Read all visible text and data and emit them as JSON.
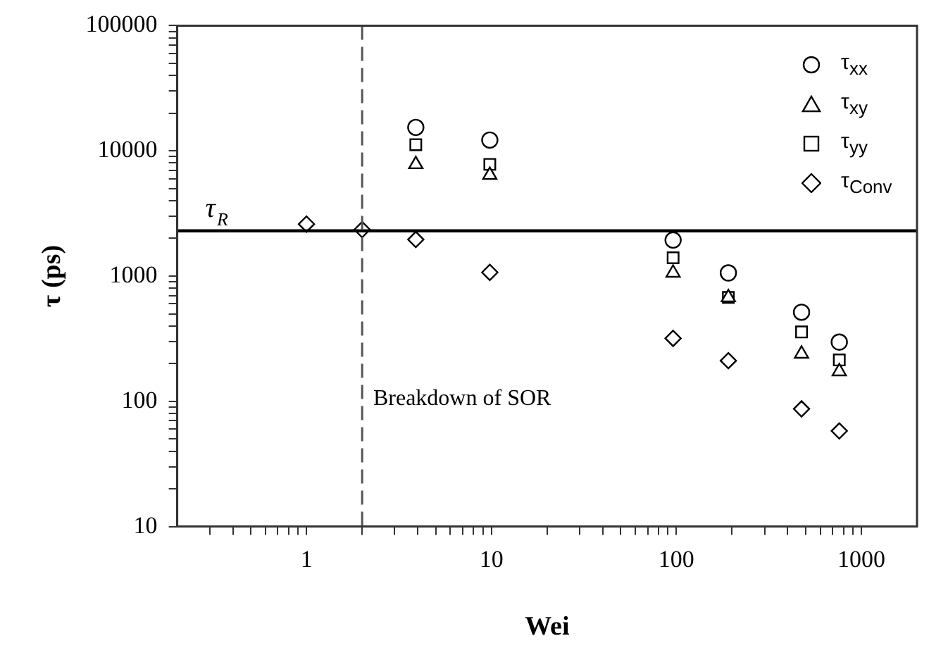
{
  "chart_data": {
    "type": "scatter",
    "xlabel": "Wei",
    "ylabel": "τ (ps)",
    "log": "xy",
    "grid": false,
    "legend": "top right",
    "xlim": [
      0.2,
      2000
    ],
    "ylim": [
      10,
      100000
    ],
    "xticks": [
      {
        "value": 0.3,
        "label": null
      },
      {
        "value": 0.4,
        "label": null
      },
      {
        "value": 0.5,
        "label": null
      },
      {
        "value": 0.6,
        "label": null
      },
      {
        "value": 0.7,
        "label": null
      },
      {
        "value": 0.8,
        "label": null
      },
      {
        "value": 0.9,
        "label": null
      },
      1,
      {
        "value": 2,
        "label": null
      },
      {
        "value": 3,
        "label": null
      },
      {
        "value": 4,
        "label": null
      },
      {
        "value": 5,
        "label": null
      },
      {
        "value": 6,
        "label": null
      },
      {
        "value": 7,
        "label": null
      },
      {
        "value": 8,
        "label": null
      },
      {
        "value": 9,
        "label": null
      },
      10,
      {
        "value": 20,
        "label": null
      },
      {
        "value": 30,
        "label": null
      },
      {
        "value": 40,
        "label": null
      },
      {
        "value": 50,
        "label": null
      },
      {
        "value": 60,
        "label": null
      },
      {
        "value": 70,
        "label": null
      },
      {
        "value": 80,
        "label": null
      },
      {
        "value": 90,
        "label": null
      },
      100,
      {
        "value": 200,
        "label": null
      },
      {
        "value": 300,
        "label": null
      },
      {
        "value": 400,
        "label": null
      },
      {
        "value": 500,
        "label": null
      },
      {
        "value": 600,
        "label": null
      },
      {
        "value": 700,
        "label": null
      },
      {
        "value": 800,
        "label": null
      },
      {
        "value": 900,
        "label": null
      },
      1000
    ],
    "yticks": [
      10,
      {
        "value": 20,
        "label": null
      },
      {
        "value": 30,
        "label": null
      },
      {
        "value": 40,
        "label": null
      },
      {
        "value": 50,
        "label": null
      },
      {
        "value": 60,
        "label": null
      },
      {
        "value": 70,
        "label": null
      },
      {
        "value": 80,
        "label": null
      },
      {
        "value": 90,
        "label": null
      },
      100,
      {
        "value": 200,
        "label": null
      },
      {
        "value": 300,
        "label": null
      },
      {
        "value": 400,
        "label": null
      },
      {
        "value": 500,
        "label": null
      },
      {
        "value": 600,
        "label": null
      },
      {
        "value": 700,
        "label": null
      },
      {
        "value": 800,
        "label": null
      },
      {
        "value": 900,
        "label": null
      },
      1000,
      {
        "value": 2000,
        "label": null
      },
      {
        "value": 3000,
        "label": null
      },
      {
        "value": 4000,
        "label": null
      },
      {
        "value": 5000,
        "label": null
      },
      {
        "value": 6000,
        "label": null
      },
      {
        "value": 7000,
        "label": null
      },
      {
        "value": 8000,
        "label": null
      },
      {
        "value": 9000,
        "label": null
      },
      10000,
      {
        "value": 20000,
        "label": null
      },
      {
        "value": 30000,
        "label": null
      },
      {
        "value": 40000,
        "label": null
      },
      {
        "value": 50000,
        "label": null
      },
      {
        "value": 60000,
        "label": null
      },
      {
        "value": 70000,
        "label": null
      },
      {
        "value": 80000,
        "label": null
      },
      {
        "value": 90000,
        "label": null
      },
      100000
    ],
    "x": [
      3.9,
      9.8,
      96,
      191,
      475,
      760
    ],
    "series": [
      {
        "name": "τ$_{xx}$",
        "color": "#000000",
        "marker": "circle",
        "values": [
          15400,
          12200,
          1940,
          1060,
          514,
          297
        ]
      },
      {
        "name": "τ$_{xy}$",
        "color": "#000000",
        "marker": "triangle",
        "values": [
          7800,
          6400,
          1060,
          675,
          239,
          173
        ]
      },
      {
        "name": "τ$_{yy}$",
        "color": "#000000",
        "marker": "square",
        "values": [
          11200,
          7800,
          1400,
          675,
          358,
          214
        ]
      },
      {
        "name": "τ$_{Conv}$",
        "color": "#000000",
        "marker": "diamond",
        "x": [
          1,
          2,
          3.9,
          9.8,
          96,
          191,
          475,
          760
        ],
        "values": [
          2600,
          2350,
          1960,
          1070,
          318,
          211,
          87,
          58
        ]
      }
    ],
    "ref_lines": [
      {
        "axis": "y",
        "value": 2300,
        "label": "τ$_{R}$",
        "color": "#000000",
        "line_style": "solid"
      },
      {
        "axis": "x",
        "value": 2,
        "color": "#555555",
        "line_style": "dashed"
      }
    ],
    "annotations": [
      "Breakdown of SOR"
    ]
  }
}
